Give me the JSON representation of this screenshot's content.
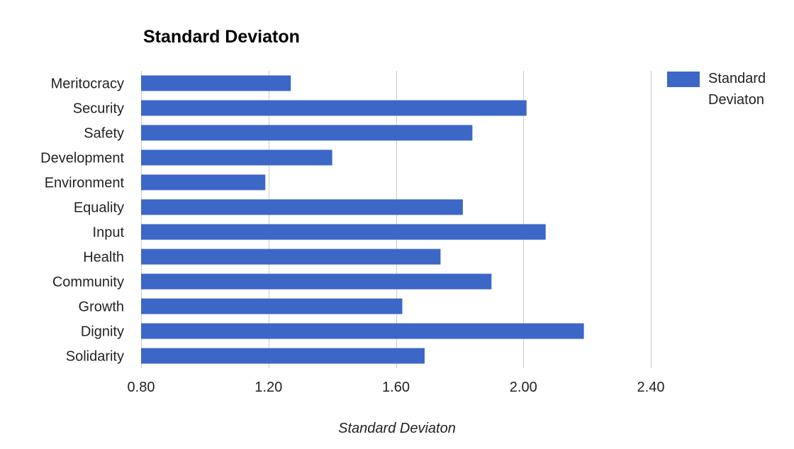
{
  "chart_data": {
    "type": "bar",
    "orientation": "horizontal",
    "title": "Standard Deviaton",
    "xlabel": "Standard Deviaton",
    "ylabel": "",
    "categories": [
      "Meritocracy",
      "Security",
      "Safety",
      "Development",
      "Environment",
      "Equality",
      "Input",
      "Health",
      "Community",
      "Growth",
      "Dignity",
      "Solidarity"
    ],
    "series": [
      {
        "name": "Standard Deviaton",
        "color": "#3c67c7",
        "values": [
          1.27,
          2.01,
          1.84,
          1.4,
          1.19,
          1.81,
          2.07,
          1.74,
          1.9,
          1.62,
          2.19,
          1.69
        ]
      }
    ],
    "xlim": [
      0.8,
      2.4
    ],
    "xticks": [
      "0.80",
      "1.20",
      "1.60",
      "2.00",
      "2.40"
    ],
    "grid": true,
    "legend_position": "right"
  }
}
